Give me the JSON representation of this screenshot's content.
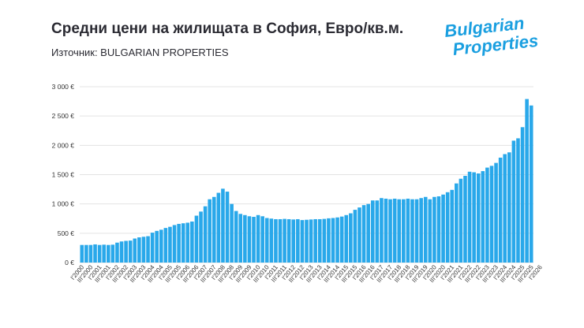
{
  "header": {
    "title": "Средни цени на жилищата в София, Евро/кв.м.",
    "source": "Източник: BULGARIAN PROPERTIES"
  },
  "logo": {
    "line1": "Bulgarian",
    "line2": "Properties",
    "color": "#1a9fe0"
  },
  "chart_data": {
    "type": "bar",
    "bar_color": "#29a8ea",
    "grid": true,
    "ylim": [
      0,
      3000
    ],
    "yticks": [
      0,
      500,
      1000,
      1500,
      2000,
      2500,
      3000
    ],
    "ytick_labels": [
      "0 €",
      "500 €",
      "1 000 €",
      "1 500 €",
      "2 000 €",
      "2 500 €",
      "3 000 €"
    ],
    "tick_labels": [
      "I'2000",
      "III'2000",
      "I'2001",
      "III'2001",
      "I'2002",
      "III'2002",
      "I'2003",
      "III'2003",
      "I'2004",
      "III'2004",
      "I'2005",
      "III'2005",
      "I'2006",
      "III'2006",
      "I'2007",
      "III'2007",
      "I'2008",
      "III'2008",
      "I'2009",
      "III'2009",
      "I'2010",
      "III'2010",
      "I'2011",
      "III'2011",
      "I'2012",
      "III'2012",
      "I'2013",
      "III'2013",
      "I'2014",
      "III'2014",
      "I'2015",
      "III'2015",
      "I'2016",
      "III'2016",
      "I'2017",
      "III'2017",
      "I'2018",
      "III'2018",
      "I'2019",
      "III'2019",
      "I'2020",
      "III'2020",
      "I'2021",
      "III'2021",
      "I'2022",
      "III'2022",
      "I'2023",
      "III'2023",
      "I'2024",
      "III'2024",
      "I'2025",
      "III'2025",
      "I'2026"
    ],
    "values": [
      300,
      300,
      300,
      310,
      300,
      305,
      300,
      305,
      340,
      360,
      370,
      375,
      410,
      430,
      440,
      450,
      510,
      540,
      560,
      590,
      610,
      640,
      660,
      670,
      680,
      700,
      800,
      870,
      960,
      1080,
      1120,
      1190,
      1260,
      1210,
      1000,
      880,
      830,
      810,
      790,
      780,
      810,
      790,
      760,
      750,
      740,
      740,
      745,
      740,
      735,
      740,
      725,
      730,
      735,
      740,
      740,
      745,
      755,
      760,
      770,
      785,
      810,
      840,
      900,
      940,
      980,
      1000,
      1060,
      1060,
      1100,
      1090,
      1080,
      1090,
      1080,
      1080,
      1090,
      1080,
      1080,
      1100,
      1120,
      1080,
      1120,
      1130,
      1160,
      1200,
      1240,
      1350,
      1430,
      1480,
      1550,
      1540,
      1520,
      1560,
      1620,
      1650,
      1700,
      1790,
      1850,
      1880,
      2080,
      2120,
      2310,
      2790,
      2680
    ]
  }
}
